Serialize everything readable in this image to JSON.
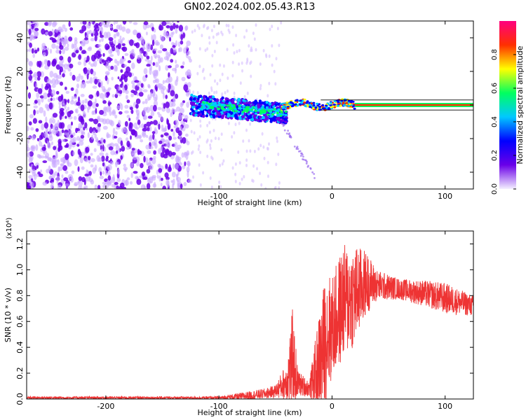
{
  "title": "GN02.2024.002.05.43.R13",
  "chart_data": [
    {
      "type": "heatmap",
      "xlabel": "Height of straight line (km)",
      "ylabel": "Frequency (Hz)",
      "xlim": [
        -270,
        125
      ],
      "ylim": [
        -50,
        50
      ],
      "xticks": [
        -200,
        -100,
        0,
        100
      ],
      "yticks": [
        -40,
        -20,
        0,
        20,
        40
      ],
      "colorbar": {
        "label": "Normalized spectral amplitude",
        "range": [
          0,
          1
        ],
        "ticks": [
          0.0,
          0.2,
          0.4,
          0.6,
          0.8
        ],
        "colors": [
          "#f4f0ff",
          "#6a00e8",
          "#0000ff",
          "#00c8ff",
          "#00ff60",
          "#ffff00",
          "#ff3000",
          "#ff0080"
        ]
      },
      "features": {
        "noise_region_x": [
          -270,
          -125
        ],
        "burst_region_x": [
          -125,
          -40
        ],
        "tone_start_x": 20,
        "tone_frequency": 0
      }
    },
    {
      "type": "line",
      "xlabel": "Height of straight line (km)",
      "ylabel": "SNR (10 * v/v)",
      "multiplier": "(x10⁴)",
      "xlim": [
        -270,
        125
      ],
      "ylim": [
        0,
        1.3
      ],
      "xticks": [
        -200,
        -100,
        0,
        100
      ],
      "yticks": [
        0.0,
        0.2,
        0.4,
        0.6,
        0.8,
        1.0,
        1.2
      ],
      "color": "#ee3333",
      "envelope": {
        "x": [
          -270,
          -120,
          -100,
          -80,
          -60,
          -50,
          -40,
          -35,
          -30,
          -20,
          -10,
          -5,
          0,
          10,
          20,
          30,
          40,
          60,
          80,
          100,
          125
        ],
        "trend": [
          0.01,
          0.01,
          0.01,
          0.02,
          0.04,
          0.06,
          0.14,
          0.3,
          0.12,
          0.08,
          0.3,
          0.5,
          0.55,
          0.75,
          0.8,
          0.9,
          0.88,
          0.85,
          0.82,
          0.78,
          0.72
        ],
        "spread": [
          0.01,
          0.01,
          0.01,
          0.03,
          0.04,
          0.05,
          0.15,
          0.4,
          0.1,
          0.06,
          0.45,
          0.5,
          0.4,
          0.45,
          0.4,
          0.25,
          0.12,
          0.08,
          0.1,
          0.12,
          0.08
        ]
      }
    }
  ]
}
